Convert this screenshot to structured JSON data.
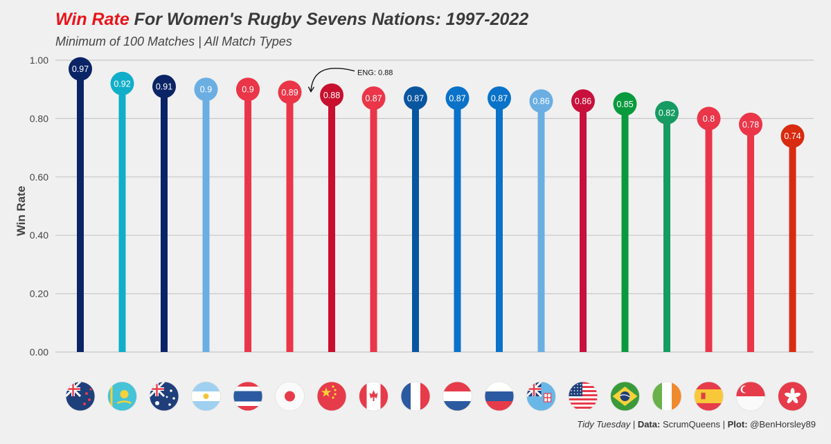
{
  "title": {
    "accent": "Win Rate",
    "rest": " For Women's Rugby Sevens Nations: 1997-2022"
  },
  "subtitle": "Minimum of 100 Matches | All Match Types",
  "caption": {
    "source_name": "Tidy Tuesday",
    "sep1": " | ",
    "data_label": "Data:",
    "data_value": " ScrumQueens",
    "sep2": " | ",
    "plot_label": "Plot:",
    "plot_value": " @BenHorsley89"
  },
  "chart_data": {
    "type": "lollipop",
    "ylabel": "Win Rate",
    "ylim": [
      0,
      1
    ],
    "yticks": [
      "0.00",
      "0.20",
      "0.40",
      "0.60",
      "0.80",
      "1.00"
    ],
    "grid": true,
    "annotation": {
      "text": "ENG: 0.88",
      "target_index": 6
    },
    "points": [
      {
        "value": 0.97,
        "label": "0.97",
        "color": "#0b2466",
        "flag": "new-zealand-flag-icon"
      },
      {
        "value": 0.92,
        "label": "0.92",
        "color": "#10aec8",
        "flag": "kazakhstan-flag-icon"
      },
      {
        "value": 0.91,
        "label": "0.91",
        "color": "#0b2466",
        "flag": "australia-flag-icon"
      },
      {
        "value": 0.9,
        "label": "0.9",
        "color": "#6aaee2",
        "flag": "argentina-flag-icon"
      },
      {
        "value": 0.9,
        "label": "0.9",
        "color": "#ea3648",
        "flag": "thailand-flag-icon"
      },
      {
        "value": 0.89,
        "label": "0.89",
        "color": "#ea3648",
        "flag": "japan-flag-icon"
      },
      {
        "value": 0.88,
        "label": "0.88",
        "color": "#c8102e",
        "flag": "china-flag-icon"
      },
      {
        "value": 0.87,
        "label": "0.87",
        "color": "#ea3648",
        "flag": "canada-flag-icon"
      },
      {
        "value": 0.87,
        "label": "0.87",
        "color": "#0a55a0",
        "flag": "france-flag-icon"
      },
      {
        "value": 0.87,
        "label": "0.87",
        "color": "#0a72c8",
        "flag": "netherlands-flag-icon"
      },
      {
        "value": 0.87,
        "label": "0.87",
        "color": "#0a72c8",
        "flag": "russia-flag-icon"
      },
      {
        "value": 0.86,
        "label": "0.86",
        "color": "#6aaee2",
        "flag": "fiji-flag-icon"
      },
      {
        "value": 0.86,
        "label": "0.86",
        "color": "#c8103c",
        "flag": "usa-flag-icon"
      },
      {
        "value": 0.85,
        "label": "0.85",
        "color": "#0a9a3e",
        "flag": "brazil-flag-icon"
      },
      {
        "value": 0.82,
        "label": "0.82",
        "color": "#169b62",
        "flag": "ireland-flag-icon"
      },
      {
        "value": 0.8,
        "label": "0.8",
        "color": "#ea3648",
        "flag": "spain-flag-icon"
      },
      {
        "value": 0.78,
        "label": "0.78",
        "color": "#ea3648",
        "flag": "singapore-flag-icon"
      },
      {
        "value": 0.74,
        "label": "0.74",
        "color": "#d82b10",
        "flag": "hong-kong-flag-icon"
      }
    ]
  }
}
